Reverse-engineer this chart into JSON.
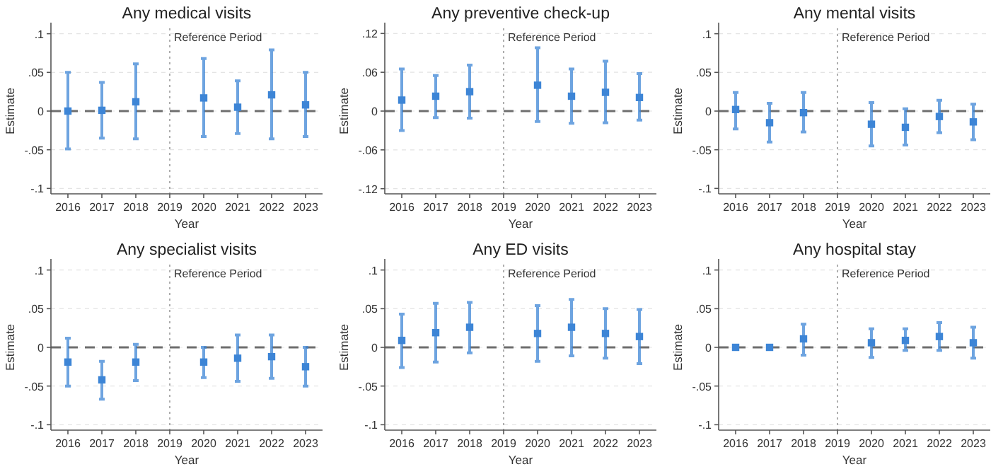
{
  "chart_data": [
    {
      "type": "scatter",
      "title": "Any medical visits",
      "xlabel": "Year",
      "ylabel": "Estimate",
      "categories": [
        "2016",
        "2017",
        "2018",
        "2019",
        "2020",
        "2021",
        "2022",
        "2023"
      ],
      "series": [
        {
          "color": "#3d85d6",
          "values": [
            0,
            0.001,
            0.012,
            null,
            0.017,
            0.005,
            0.021,
            0.008
          ],
          "errors": [
            [
              -0.049,
              0.05
            ],
            [
              -0.035,
              0.037
            ],
            [
              -0.036,
              0.061
            ],
            null,
            [
              -0.033,
              0.068
            ],
            [
              -0.029,
              0.039
            ],
            [
              -0.036,
              0.079
            ],
            [
              -0.033,
              0.05
            ]
          ]
        }
      ],
      "ylim": [
        -0.107,
        0.107
      ],
      "yticks": [
        {
          "value": -0.1,
          "label": "-.1"
        },
        {
          "value": -0.05,
          "label": "-.05"
        },
        {
          "value": 0,
          "label": "0"
        },
        {
          "value": 0.05,
          "label": ".05"
        },
        {
          "value": 0.1,
          "label": ".1"
        }
      ],
      "grid": "y",
      "marker": "square",
      "ref_lines": [
        {
          "axis": "x",
          "value": "2019",
          "label": "Reference Period",
          "color": "#9a9a9a",
          "line_style": "dotted"
        },
        {
          "axis": "y",
          "value": 0,
          "color": "#6e6e6e",
          "line_style": "dashed"
        }
      ]
    },
    {
      "type": "scatter",
      "title": "Any preventive check-up",
      "xlabel": "Year",
      "ylabel": "Estimate",
      "categories": [
        "2016",
        "2017",
        "2018",
        "2019",
        "2020",
        "2021",
        "2022",
        "2023"
      ],
      "series": [
        {
          "color": "#3d85d6",
          "values": [
            0.017,
            0.023,
            0.03,
            null,
            0.04,
            0.023,
            0.029,
            0.021
          ],
          "errors": [
            [
              -0.03,
              0.065
            ],
            [
              -0.01,
              0.055
            ],
            [
              -0.011,
              0.071
            ],
            null,
            [
              -0.016,
              0.098
            ],
            [
              -0.019,
              0.065
            ],
            [
              -0.018,
              0.077
            ],
            [
              -0.014,
              0.058
            ]
          ]
        }
      ],
      "ylim": [
        -0.128,
        0.128
      ],
      "yticks": [
        {
          "value": -0.12,
          "label": "-.12"
        },
        {
          "value": -0.06,
          "label": "-.06"
        },
        {
          "value": 0,
          "label": "0"
        },
        {
          "value": 0.06,
          "label": ".06"
        },
        {
          "value": 0.12,
          "label": ".12"
        }
      ],
      "grid": "y",
      "marker": "square",
      "ref_lines": [
        {
          "axis": "x",
          "value": "2019",
          "label": "Reference Period",
          "color": "#9a9a9a",
          "line_style": "dotted"
        },
        {
          "axis": "y",
          "value": 0,
          "color": "#6e6e6e",
          "line_style": "dashed"
        }
      ]
    },
    {
      "type": "scatter",
      "title": "Any mental visits",
      "xlabel": "Year",
      "ylabel": "Estimate",
      "categories": [
        "2016",
        "2017",
        "2018",
        "2019",
        "2020",
        "2021",
        "2022",
        "2023"
      ],
      "series": [
        {
          "color": "#3d85d6",
          "values": [
            0.002,
            -0.015,
            -0.002,
            null,
            -0.017,
            -0.021,
            -0.007,
            -0.014
          ],
          "errors": [
            [
              -0.023,
              0.024
            ],
            [
              -0.04,
              0.01
            ],
            [
              -0.027,
              0.024
            ],
            null,
            [
              -0.045,
              0.011
            ],
            [
              -0.044,
              0.003
            ],
            [
              -0.028,
              0.014
            ],
            [
              -0.037,
              0.009
            ]
          ]
        }
      ],
      "ylim": [
        -0.107,
        0.107
      ],
      "yticks": [
        {
          "value": -0.1,
          "label": "-.1"
        },
        {
          "value": -0.05,
          "label": "-.05"
        },
        {
          "value": 0,
          "label": "0"
        },
        {
          "value": 0.05,
          "label": ".05"
        },
        {
          "value": 0.1,
          "label": ".1"
        }
      ],
      "grid": "y",
      "marker": "square",
      "ref_lines": [
        {
          "axis": "x",
          "value": "2019",
          "label": "Reference Period",
          "color": "#9a9a9a",
          "line_style": "dotted"
        },
        {
          "axis": "y",
          "value": 0,
          "color": "#6e6e6e",
          "line_style": "dashed"
        }
      ]
    },
    {
      "type": "scatter",
      "title": "Any specialist visits",
      "xlabel": "Year",
      "ylabel": "Estimate",
      "categories": [
        "2016",
        "2017",
        "2018",
        "2019",
        "2020",
        "2021",
        "2022",
        "2023"
      ],
      "series": [
        {
          "color": "#3d85d6",
          "values": [
            -0.019,
            -0.042,
            -0.019,
            null,
            -0.019,
            -0.014,
            -0.012,
            -0.025
          ],
          "errors": [
            [
              -0.05,
              0.012
            ],
            [
              -0.067,
              -0.018
            ],
            [
              -0.043,
              0.004
            ],
            null,
            [
              -0.039,
              0
            ],
            [
              -0.044,
              0.016
            ],
            [
              -0.04,
              0.016
            ],
            [
              -0.05,
              0
            ]
          ]
        }
      ],
      "ylim": [
        -0.107,
        0.107
      ],
      "yticks": [
        {
          "value": -0.1,
          "label": "-.1"
        },
        {
          "value": -0.05,
          "label": "-.05"
        },
        {
          "value": 0,
          "label": "0"
        },
        {
          "value": 0.05,
          "label": ".05"
        },
        {
          "value": 0.1,
          "label": ".1"
        }
      ],
      "grid": "y",
      "marker": "square",
      "ref_lines": [
        {
          "axis": "x",
          "value": "2019",
          "label": "Reference Period",
          "color": "#9a9a9a",
          "line_style": "dotted"
        },
        {
          "axis": "y",
          "value": 0,
          "color": "#6e6e6e",
          "line_style": "dashed"
        }
      ]
    },
    {
      "type": "scatter",
      "title": "Any ED visits",
      "xlabel": "Year",
      "ylabel": "Estimate",
      "categories": [
        "2016",
        "2017",
        "2018",
        "2019",
        "2020",
        "2021",
        "2022",
        "2023"
      ],
      "series": [
        {
          "color": "#3d85d6",
          "values": [
            0.009,
            0.019,
            0.026,
            null,
            0.018,
            0.026,
            0.018,
            0.014
          ],
          "errors": [
            [
              -0.026,
              0.043
            ],
            [
              -0.019,
              0.057
            ],
            [
              -0.007,
              0.058
            ],
            null,
            [
              -0.018,
              0.054
            ],
            [
              -0.011,
              0.062
            ],
            [
              -0.014,
              0.05
            ],
            [
              -0.021,
              0.049
            ]
          ]
        }
      ],
      "ylim": [
        -0.107,
        0.107
      ],
      "yticks": [
        {
          "value": -0.1,
          "label": "-.1"
        },
        {
          "value": -0.05,
          "label": "-.05"
        },
        {
          "value": 0,
          "label": "0"
        },
        {
          "value": 0.05,
          "label": ".05"
        },
        {
          "value": 0.1,
          "label": ".1"
        }
      ],
      "grid": "y",
      "marker": "square",
      "ref_lines": [
        {
          "axis": "x",
          "value": "2019",
          "label": "Reference Period",
          "color": "#9a9a9a",
          "line_style": "dotted"
        },
        {
          "axis": "y",
          "value": 0,
          "color": "#6e6e6e",
          "line_style": "dashed"
        }
      ]
    },
    {
      "type": "scatter",
      "title": "Any hospital stay",
      "xlabel": "Year",
      "ylabel": "Estimate",
      "categories": [
        "2016",
        "2017",
        "2018",
        "2019",
        "2020",
        "2021",
        "2022",
        "2023"
      ],
      "series": [
        {
          "color": "#3d85d6",
          "values": [
            0,
            0,
            0.011,
            null,
            0.006,
            0.009,
            0.014,
            0.006
          ],
          "errors": [
            null,
            null,
            [
              -0.01,
              0.03
            ],
            null,
            [
              -0.013,
              0.024
            ],
            [
              -0.004,
              0.024
            ],
            [
              -0.004,
              0.032
            ],
            [
              -0.014,
              0.026
            ]
          ]
        }
      ],
      "ylim": [
        -0.107,
        0.107
      ],
      "yticks": [
        {
          "value": -0.1,
          "label": "-.1"
        },
        {
          "value": -0.05,
          "label": "-.05"
        },
        {
          "value": 0,
          "label": "0"
        },
        {
          "value": 0.05,
          "label": ".05"
        },
        {
          "value": 0.1,
          "label": ".1"
        }
      ],
      "grid": "y",
      "marker": "square",
      "ref_lines": [
        {
          "axis": "x",
          "value": "2019",
          "label": "Reference Period",
          "color": "#9a9a9a",
          "line_style": "dotted"
        },
        {
          "axis": "y",
          "value": 0,
          "color": "#6e6e6e",
          "line_style": "dashed"
        }
      ]
    }
  ]
}
